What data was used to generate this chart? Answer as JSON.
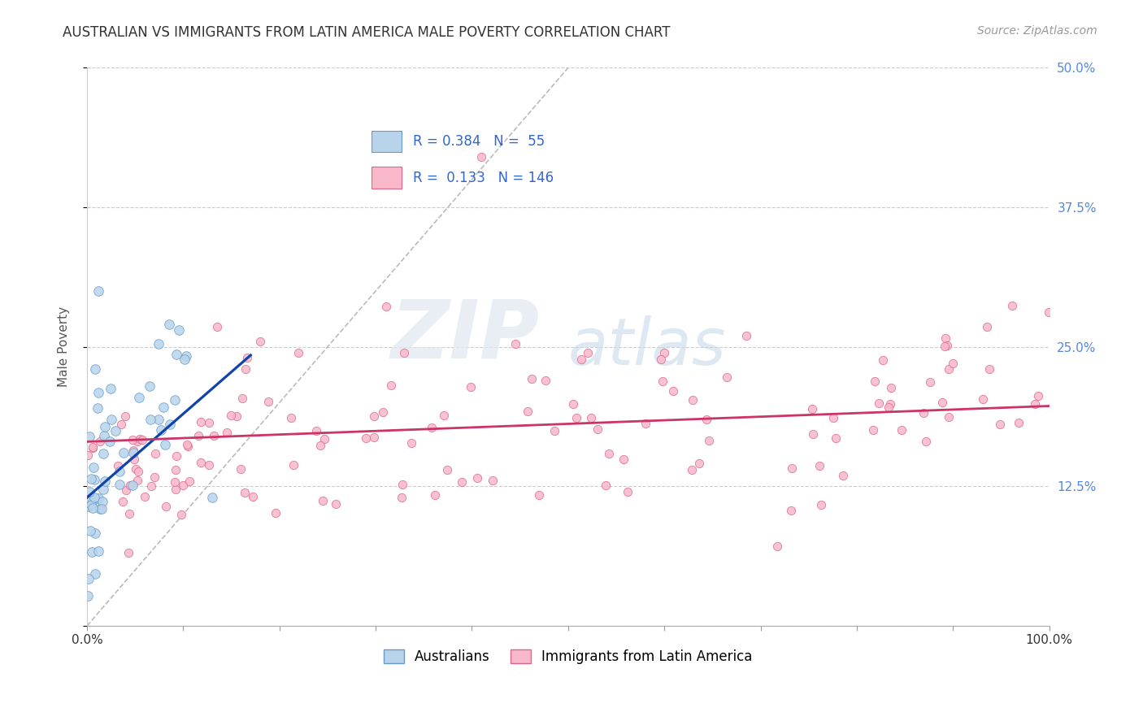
{
  "title": "AUSTRALIAN VS IMMIGRANTS FROM LATIN AMERICA MALE POVERTY CORRELATION CHART",
  "source": "Source: ZipAtlas.com",
  "ylabel": "Male Poverty",
  "watermark_zip": "ZIP",
  "watermark_atlas": "atlas",
  "bg_color": "#ffffff",
  "plot_bg_color": "#ffffff",
  "grid_color": "#cccccc",
  "xlim": [
    0.0,
    1.0
  ],
  "ylim": [
    0.0,
    0.5
  ],
  "yticks": [
    0.0,
    0.125,
    0.25,
    0.375,
    0.5
  ],
  "series": [
    {
      "name": "Australians",
      "R": 0.384,
      "N": 55,
      "color": "#b8d4ea",
      "edge_color": "#6699cc",
      "line_color": "#1144aa",
      "marker_size": 70
    },
    {
      "name": "Immigrants from Latin America",
      "R": 0.133,
      "N": 146,
      "color": "#f9b8ca",
      "edge_color": "#dd6688",
      "line_color": "#cc3366",
      "marker_size": 55
    }
  ],
  "title_fontsize": 12,
  "axis_label_fontsize": 11,
  "tick_fontsize": 11,
  "source_fontsize": 10,
  "legend_fontsize": 12,
  "stat_color": "#3366cc",
  "diagonal_color": "#bbbbbb"
}
